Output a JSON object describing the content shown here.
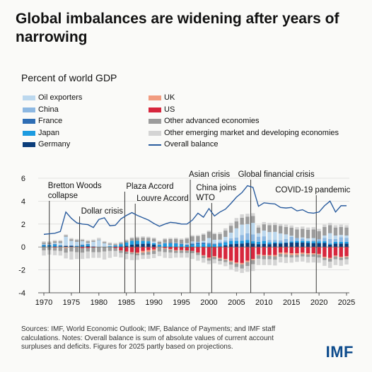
{
  "title": "Global imbalances are widening after years of narrowing",
  "chart_data": {
    "type": "bar",
    "stacked": true,
    "ylabel": "Percent of world GDP",
    "ylim": [
      -4,
      6
    ],
    "yticks": [
      -4,
      -2,
      0,
      2,
      4,
      6
    ],
    "xticks": [
      1970,
      1975,
      1980,
      1985,
      1990,
      1995,
      2000,
      2005,
      2010,
      2015,
      2020,
      2025
    ],
    "x": [
      1970,
      1971,
      1972,
      1973,
      1974,
      1975,
      1976,
      1977,
      1978,
      1979,
      1980,
      1981,
      1982,
      1983,
      1984,
      1985,
      1986,
      1987,
      1988,
      1989,
      1990,
      1991,
      1992,
      1993,
      1994,
      1995,
      1996,
      1997,
      1998,
      1999,
      2000,
      2001,
      2002,
      2003,
      2004,
      2005,
      2006,
      2007,
      2008,
      2009,
      2010,
      2011,
      2012,
      2013,
      2014,
      2015,
      2016,
      2017,
      2018,
      2019,
      2020,
      2021,
      2022,
      2023,
      2024,
      2025
    ],
    "positive_series": [
      {
        "name": "Germany",
        "color": "#0b3d7a",
        "values": [
          0.05,
          0.05,
          0.05,
          0.05,
          0.1,
          0.08,
          0.05,
          0.05,
          0.08,
          0.0,
          0.0,
          0.0,
          0.02,
          0.03,
          0.05,
          0.1,
          0.2,
          0.25,
          0.28,
          0.3,
          0.2,
          0.0,
          0.0,
          0.0,
          0.0,
          0.0,
          0.0,
          0.0,
          0.0,
          0.0,
          0.0,
          0.0,
          0.05,
          0.15,
          0.25,
          0.28,
          0.3,
          0.35,
          0.3,
          0.25,
          0.28,
          0.25,
          0.32,
          0.3,
          0.35,
          0.38,
          0.38,
          0.38,
          0.35,
          0.33,
          0.33,
          0.35,
          0.2,
          0.3,
          0.3,
          0.3
        ]
      },
      {
        "name": "Japan",
        "color": "#1c9be0",
        "values": [
          0.1,
          0.1,
          0.15,
          0.05,
          0.0,
          0.0,
          0.05,
          0.1,
          0.12,
          0.0,
          0.0,
          0.02,
          0.05,
          0.1,
          0.2,
          0.3,
          0.35,
          0.3,
          0.25,
          0.2,
          0.12,
          0.2,
          0.3,
          0.3,
          0.28,
          0.22,
          0.15,
          0.2,
          0.25,
          0.25,
          0.25,
          0.2,
          0.22,
          0.25,
          0.28,
          0.25,
          0.25,
          0.25,
          0.2,
          0.2,
          0.25,
          0.15,
          0.1,
          0.08,
          0.05,
          0.1,
          0.15,
          0.15,
          0.15,
          0.15,
          0.15,
          0.15,
          0.1,
          0.15,
          0.15,
          0.15
        ]
      },
      {
        "name": "France",
        "color": "#2e6db4",
        "values": [
          0.05,
          0.05,
          0.05,
          0.05,
          0.0,
          0.05,
          0.0,
          0.05,
          0.05,
          0.05,
          0.0,
          0.0,
          0.0,
          0.0,
          0.0,
          0.0,
          0.0,
          0.0,
          0.0,
          0.0,
          0.0,
          0.0,
          0.03,
          0.05,
          0.05,
          0.05,
          0.05,
          0.08,
          0.1,
          0.1,
          0.05,
          0.05,
          0.05,
          0.03,
          0.02,
          0.0,
          0.0,
          0.0,
          0.0,
          0.0,
          0.0,
          0.0,
          0.0,
          0.0,
          0.0,
          0.0,
          0.0,
          0.0,
          0.0,
          0.0,
          0.0,
          0.0,
          0.0,
          0.0,
          0.0,
          0.0
        ]
      },
      {
        "name": "China",
        "color": "#8db8e2",
        "values": [
          0.0,
          0.0,
          0.0,
          0.0,
          0.0,
          0.0,
          0.0,
          0.0,
          0.0,
          0.0,
          0.0,
          0.0,
          0.03,
          0.02,
          0.0,
          0.0,
          0.0,
          0.0,
          0.0,
          0.0,
          0.05,
          0.05,
          0.03,
          0.0,
          0.03,
          0.02,
          0.03,
          0.1,
          0.1,
          0.08,
          0.08,
          0.08,
          0.12,
          0.15,
          0.2,
          0.3,
          0.5,
          0.6,
          0.6,
          0.45,
          0.4,
          0.2,
          0.2,
          0.2,
          0.3,
          0.4,
          0.25,
          0.2,
          0.05,
          0.1,
          0.2,
          0.3,
          0.4,
          0.25,
          0.4,
          0.35
        ]
      },
      {
        "name": "Oil exporters",
        "color": "#bcd8ee",
        "values": [
          0.05,
          0.05,
          0.1,
          0.2,
          0.8,
          0.4,
          0.35,
          0.3,
          0.1,
          0.4,
          0.6,
          0.3,
          0.1,
          0.0,
          0.0,
          0.0,
          0.0,
          0.0,
          0.0,
          0.0,
          0.1,
          0.0,
          0.0,
          0.0,
          0.0,
          0.0,
          0.1,
          0.1,
          0.0,
          0.1,
          0.4,
          0.3,
          0.2,
          0.3,
          0.5,
          0.8,
          0.9,
          0.8,
          1.0,
          0.3,
          0.5,
          0.7,
          0.7,
          0.6,
          0.4,
          0.1,
          0.0,
          0.1,
          0.2,
          0.2,
          0.0,
          0.2,
          0.5,
          0.3,
          0.2,
          0.2
        ]
      },
      {
        "name": "Other advanced economies",
        "color": "#9c9c9c",
        "values": [
          0.15,
          0.15,
          0.15,
          0.15,
          0.1,
          0.15,
          0.15,
          0.1,
          0.15,
          0.1,
          0.05,
          0.1,
          0.1,
          0.1,
          0.1,
          0.15,
          0.2,
          0.25,
          0.3,
          0.3,
          0.25,
          0.2,
          0.3,
          0.35,
          0.35,
          0.35,
          0.4,
          0.45,
          0.5,
          0.55,
          0.55,
          0.5,
          0.5,
          0.55,
          0.6,
          0.6,
          0.6,
          0.65,
          0.6,
          0.5,
          0.55,
          0.6,
          0.6,
          0.65,
          0.65,
          0.7,
          0.75,
          0.75,
          0.75,
          0.75,
          0.7,
          0.75,
          0.7,
          0.7,
          0.7,
          0.7
        ]
      },
      {
        "name": "Other emerging market and developing economies",
        "color": "#d4d4d4",
        "values": [
          0.1,
          0.1,
          0.1,
          0.1,
          0.1,
          0.1,
          0.1,
          0.1,
          0.1,
          0.1,
          0.15,
          0.1,
          0.1,
          0.1,
          0.1,
          0.1,
          0.1,
          0.1,
          0.1,
          0.1,
          0.1,
          0.1,
          0.1,
          0.1,
          0.1,
          0.1,
          0.1,
          0.1,
          0.1,
          0.1,
          0.1,
          0.1,
          0.15,
          0.2,
          0.25,
          0.3,
          0.3,
          0.25,
          0.25,
          0.2,
          0.2,
          0.2,
          0.2,
          0.2,
          0.2,
          0.2,
          0.2,
          0.2,
          0.2,
          0.2,
          0.2,
          0.2,
          0.2,
          0.2,
          0.2,
          0.2
        ]
      }
    ],
    "negative_series": [
      {
        "name": "US",
        "color": "#d7263d",
        "values": [
          0.0,
          0.02,
          0.05,
          0.0,
          0.0,
          0.0,
          0.02,
          0.1,
          0.1,
          0.05,
          0.0,
          0.0,
          0.0,
          0.1,
          0.3,
          0.4,
          0.45,
          0.48,
          0.35,
          0.28,
          0.22,
          0.0,
          0.1,
          0.18,
          0.28,
          0.28,
          0.3,
          0.35,
          0.48,
          0.72,
          0.92,
          0.8,
          0.95,
          1.05,
          1.2,
          1.35,
          1.4,
          1.2,
          1.05,
          0.65,
          0.7,
          0.7,
          0.7,
          0.48,
          0.5,
          0.55,
          0.55,
          0.5,
          0.55,
          0.55,
          0.6,
          0.85,
          0.95,
          0.75,
          0.85,
          0.8
        ]
      },
      {
        "name": "UK",
        "color": "#f19c80",
        "values": [
          0.0,
          0.0,
          0.02,
          0.05,
          0.1,
          0.05,
          0.03,
          0.0,
          0.0,
          0.0,
          0.0,
          0.0,
          0.0,
          0.0,
          0.02,
          0.02,
          0.05,
          0.1,
          0.15,
          0.15,
          0.1,
          0.05,
          0.05,
          0.05,
          0.05,
          0.03,
          0.03,
          0.0,
          0.02,
          0.05,
          0.08,
          0.08,
          0.08,
          0.08,
          0.1,
          0.1,
          0.12,
          0.12,
          0.1,
          0.08,
          0.08,
          0.08,
          0.12,
          0.12,
          0.15,
          0.15,
          0.15,
          0.12,
          0.12,
          0.1,
          0.08,
          0.1,
          0.08,
          0.08,
          0.08,
          0.08
        ]
      },
      {
        "name": "Other advanced economies",
        "color": "#9c9c9c",
        "values": [
          0.3,
          0.25,
          0.25,
          0.3,
          0.4,
          0.35,
          0.4,
          0.4,
          0.3,
          0.4,
          0.45,
          0.4,
          0.35,
          0.25,
          0.2,
          0.2,
          0.15,
          0.15,
          0.2,
          0.25,
          0.3,
          0.35,
          0.3,
          0.25,
          0.2,
          0.22,
          0.2,
          0.2,
          0.2,
          0.2,
          0.2,
          0.2,
          0.2,
          0.2,
          0.25,
          0.3,
          0.35,
          0.35,
          0.35,
          0.3,
          0.3,
          0.3,
          0.3,
          0.25,
          0.25,
          0.22,
          0.2,
          0.2,
          0.2,
          0.2,
          0.25,
          0.2,
          0.25,
          0.25,
          0.22,
          0.2
        ]
      },
      {
        "name": "Other emerging market and developing economies",
        "color": "#d4d4d4",
        "values": [
          0.45,
          0.4,
          0.4,
          0.4,
          0.5,
          0.7,
          0.6,
          0.55,
          0.6,
          0.5,
          0.5,
          0.7,
          0.6,
          0.5,
          0.4,
          0.45,
          0.5,
          0.4,
          0.35,
          0.35,
          0.35,
          0.4,
          0.5,
          0.5,
          0.4,
          0.4,
          0.4,
          0.5,
          0.5,
          0.4,
          0.3,
          0.35,
          0.3,
          0.35,
          0.4,
          0.4,
          0.4,
          0.5,
          0.6,
          0.55,
          0.5,
          0.5,
          0.5,
          0.5,
          0.5,
          0.45,
          0.4,
          0.45,
          0.5,
          0.5,
          0.45,
          0.5,
          0.55,
          0.5,
          0.5,
          0.45
        ]
      }
    ],
    "overall_balance": {
      "name": "Overall balance",
      "color": "#2a5c9e",
      "values": [
        1.1,
        1.15,
        1.2,
        1.35,
        3.05,
        2.5,
        2.1,
        2.0,
        1.95,
        1.7,
        2.4,
        2.55,
        1.85,
        1.9,
        2.45,
        2.75,
        3.0,
        2.75,
        2.55,
        2.35,
        2.05,
        1.8,
        2.0,
        2.15,
        2.1,
        2.0,
        2.0,
        2.35,
        2.95,
        2.6,
        3.35,
        2.7,
        3.05,
        3.3,
        3.8,
        4.35,
        4.75,
        5.35,
        5.2,
        3.55,
        3.85,
        3.8,
        3.75,
        3.45,
        3.4,
        3.45,
        3.15,
        3.25,
        3.0,
        2.95,
        3.05,
        3.6,
        4.0,
        3.05,
        3.6,
        3.6
      ]
    },
    "events": [
      {
        "year": 1971,
        "label": "Bretton Woods collapse",
        "lines": [
          "Bretton Woods",
          "collapse"
        ]
      },
      {
        "year": 1976.5,
        "label": "Dollar crisis",
        "lines": [
          "Dollar crisis"
        ]
      },
      {
        "year": 1984.7,
        "label": "Plaza Accord",
        "lines": [
          "Plaza Accord"
        ]
      },
      {
        "year": 1986.6,
        "label": "Louvre Accord",
        "lines": [
          "Louvre Accord"
        ]
      },
      {
        "year": 1996.6,
        "label": "Asian crisis",
        "lines": [
          "Asian crisis"
        ]
      },
      {
        "year": 2000.5,
        "label": "China joins WTO",
        "lines": [
          "China joins",
          "WTO"
        ]
      },
      {
        "year": 2007.6,
        "label": "Global financial crisis",
        "lines": [
          "Global financial crisis"
        ]
      },
      {
        "year": 2019.5,
        "label": "COVID-19 pandemic",
        "lines": [
          "COVID-19 pandemic"
        ]
      }
    ]
  },
  "legend": [
    {
      "label": "Oil exporters",
      "color": "#bcd8ee",
      "kind": "box"
    },
    {
      "label": "China",
      "color": "#8db8e2",
      "kind": "box"
    },
    {
      "label": "France",
      "color": "#2e6db4",
      "kind": "box"
    },
    {
      "label": "Japan",
      "color": "#1c9be0",
      "kind": "box"
    },
    {
      "label": "Germany",
      "color": "#0b3d7a",
      "kind": "box"
    },
    {
      "label": "UK",
      "color": "#f19c80",
      "kind": "box"
    },
    {
      "label": "US",
      "color": "#d7263d",
      "kind": "box"
    },
    {
      "label": "Other advanced economies",
      "color": "#9c9c9c",
      "kind": "box"
    },
    {
      "label": "Other emerging market and developing economies",
      "color": "#d4d4d4",
      "kind": "box"
    },
    {
      "label": "Overall balance",
      "color": "#2a5c9e",
      "kind": "line"
    }
  ],
  "footer": "Sources: IMF, World Economic Outlook; IMF, Balance of Payments; and IMF staff calculations. Notes: Overall balance is sum of absolute values of current account surpluses and deficits. Figures for 2025 partly based on projections.",
  "logo": "IMF"
}
